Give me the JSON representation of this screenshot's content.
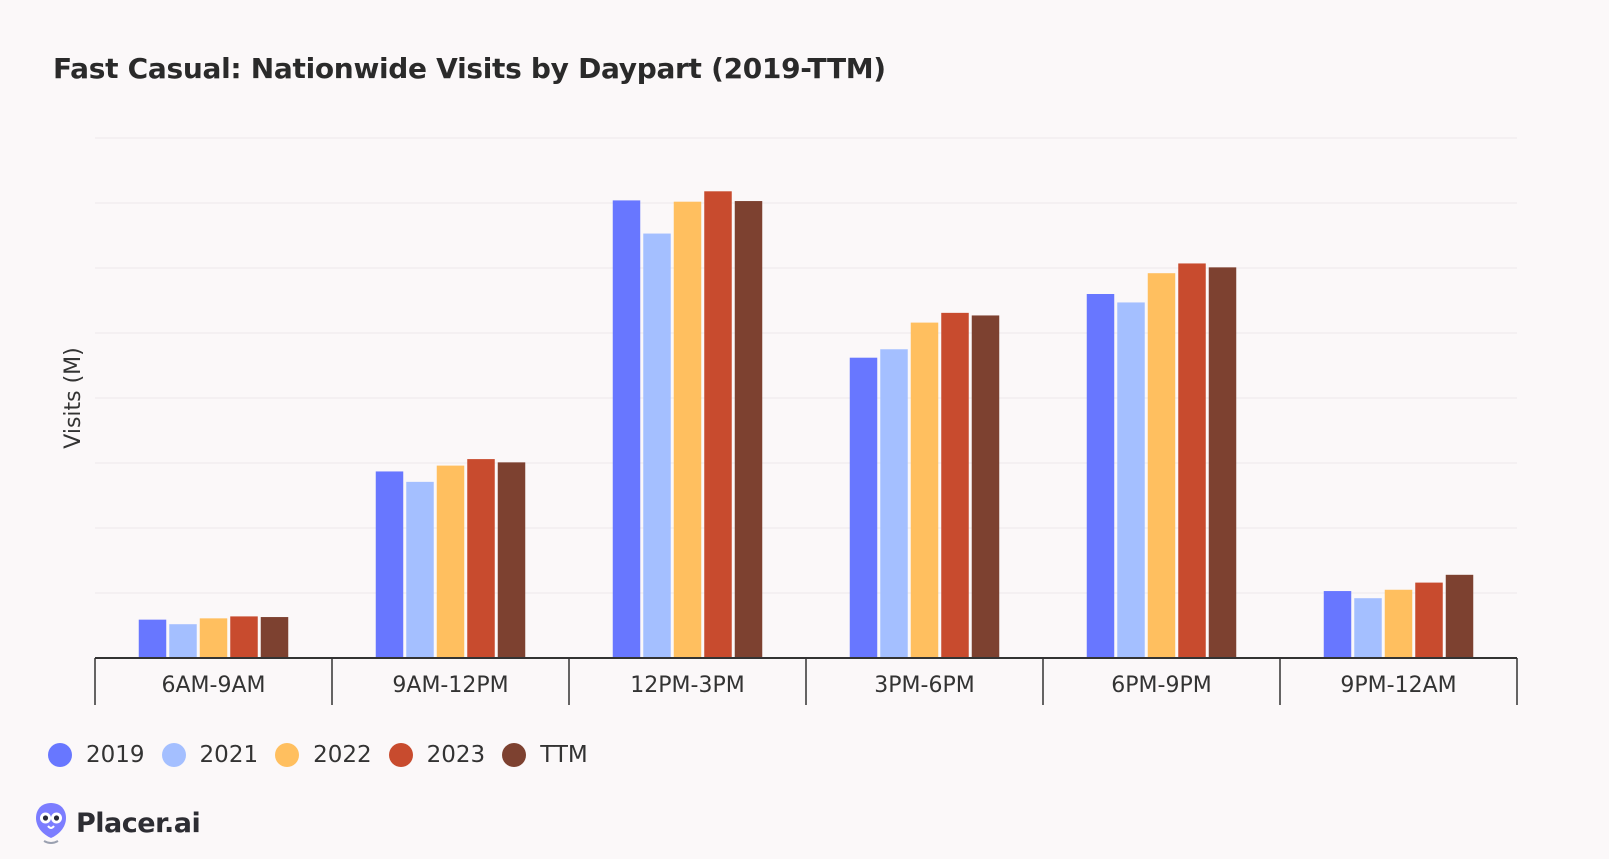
{
  "brand": {
    "name": "Placer.ai",
    "logo_icon": "placer-owl-icon"
  },
  "chart_data": {
    "type": "bar",
    "title": "Fast Casual: Nationwide Visits by Daypart (2019-TTM)",
    "ylabel": "Visits (M)",
    "xlabel": "",
    "ylim": [
      0,
      8
    ],
    "y_ticks_shown": false,
    "grid": true,
    "legend_position": "bottom-left",
    "categories": [
      "6AM-9AM",
      "9AM-12PM",
      "12PM-3PM",
      "3PM-6PM",
      "6PM-9PM",
      "9PM-12AM"
    ],
    "series": [
      {
        "name": "2019",
        "color": "#6877ff",
        "values": [
          0.59,
          2.87,
          7.04,
          4.62,
          5.6,
          1.03
        ]
      },
      {
        "name": "2021",
        "color": "#a4bfff",
        "values": [
          0.52,
          2.71,
          6.53,
          4.75,
          5.47,
          0.92
        ]
      },
      {
        "name": "2022",
        "color": "#ffbf5f",
        "values": [
          0.61,
          2.96,
          7.02,
          5.16,
          5.92,
          1.05
        ]
      },
      {
        "name": "2023",
        "color": "#c84b2e",
        "values": [
          0.64,
          3.06,
          7.18,
          5.31,
          6.07,
          1.16
        ]
      },
      {
        "name": "TTM",
        "color": "#7d4130",
        "values": [
          0.63,
          3.01,
          7.03,
          5.27,
          6.01,
          1.28
        ]
      }
    ]
  }
}
